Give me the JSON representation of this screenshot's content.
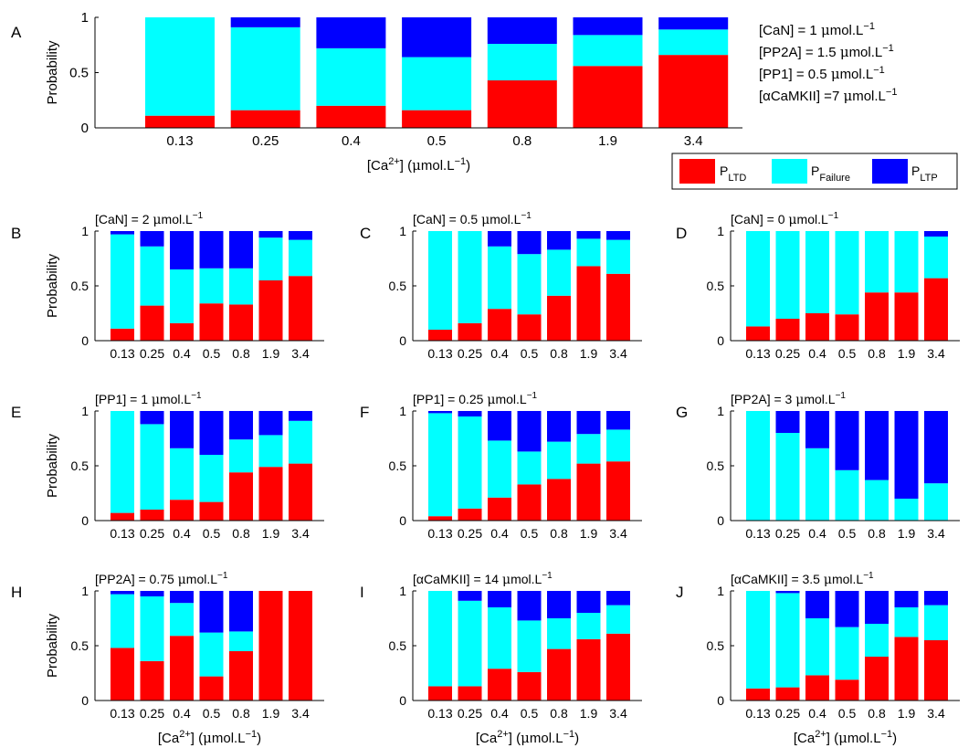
{
  "colors": {
    "ltd": "#ff0000",
    "failure": "#00ffff",
    "ltp": "#0000ff"
  },
  "legend": {
    "ltd_base": "P",
    "ltd_sub": "LTD",
    "failure_base": "P",
    "failure_sub": "Failure",
    "ltp_base": "P",
    "ltp_sub": "LTP"
  },
  "conditions_A": [
    {
      "pre": "[CaN] = 1 ",
      "sup": "−1"
    },
    {
      "pre": "[PP2A] = 1.5 ",
      "sup": "−1"
    },
    {
      "pre": "[PP1] = 0.5 ",
      "sup": "−1"
    },
    {
      "pre": "[αCaMKII] =7 ",
      "sup": "−1"
    }
  ],
  "chart_data": [
    {
      "id": "A",
      "type": "bar",
      "stacked": true,
      "panel_letter": "A",
      "title_pre": "",
      "ylabel": "Probability",
      "xlabel_show": true,
      "yticks": [
        "0",
        "0.5",
        "1"
      ],
      "ylim": [
        0,
        1
      ],
      "categories": [
        "0.13",
        "0.25",
        "0.4",
        "0.5",
        "0.8",
        "1.9",
        "3.4"
      ],
      "series": [
        {
          "name": "P_LTD",
          "values": [
            0.11,
            0.16,
            0.2,
            0.16,
            0.43,
            0.56,
            0.66
          ]
        },
        {
          "name": "P_Failure",
          "values": [
            0.89,
            0.75,
            0.52,
            0.48,
            0.33,
            0.28,
            0.23
          ]
        },
        {
          "name": "P_LTP",
          "values": [
            0.0,
            0.09,
            0.28,
            0.36,
            0.24,
            0.16,
            0.11
          ]
        }
      ]
    },
    {
      "id": "B",
      "type": "bar",
      "stacked": true,
      "panel_letter": "B",
      "title_pre": "[CaN] = 2 ",
      "ylabel": "Probability",
      "xlabel_show": false,
      "yticks": [
        "0",
        "0.5",
        "1"
      ],
      "ylim": [
        0,
        1
      ],
      "categories": [
        "0.13",
        "0.25",
        "0.4",
        "0.5",
        "0.8",
        "1.9",
        "3.4"
      ],
      "series": [
        {
          "name": "P_LTD",
          "values": [
            0.11,
            0.32,
            0.16,
            0.34,
            0.33,
            0.55,
            0.59
          ]
        },
        {
          "name": "P_Failure",
          "values": [
            0.86,
            0.54,
            0.49,
            0.32,
            0.33,
            0.39,
            0.33
          ]
        },
        {
          "name": "P_LTP",
          "values": [
            0.03,
            0.14,
            0.35,
            0.34,
            0.34,
            0.06,
            0.08
          ]
        }
      ]
    },
    {
      "id": "C",
      "type": "bar",
      "stacked": true,
      "panel_letter": "C",
      "title_pre": "[CaN] = 0.5 ",
      "ylabel": "",
      "xlabel_show": false,
      "yticks": [
        "0",
        "0.5",
        "1"
      ],
      "ylim": [
        0,
        1
      ],
      "categories": [
        "0.13",
        "0.25",
        "0.4",
        "0.5",
        "0.8",
        "1.9",
        "3.4"
      ],
      "series": [
        {
          "name": "P_LTD",
          "values": [
            0.1,
            0.16,
            0.29,
            0.24,
            0.41,
            0.68,
            0.61
          ]
        },
        {
          "name": "P_Failure",
          "values": [
            0.9,
            0.84,
            0.57,
            0.55,
            0.42,
            0.25,
            0.31
          ]
        },
        {
          "name": "P_LTP",
          "values": [
            0.0,
            0.0,
            0.14,
            0.21,
            0.17,
            0.07,
            0.08
          ]
        }
      ]
    },
    {
      "id": "D",
      "type": "bar",
      "stacked": true,
      "panel_letter": "D",
      "title_pre": "[CaN] = 0 ",
      "ylabel": "",
      "xlabel_show": false,
      "yticks": [
        "0",
        "0.5",
        "1"
      ],
      "ylim": [
        0,
        1
      ],
      "categories": [
        "0.13",
        "0.25",
        "0.4",
        "0.5",
        "0.8",
        "1.9",
        "3.4"
      ],
      "series": [
        {
          "name": "P_LTD",
          "values": [
            0.13,
            0.2,
            0.25,
            0.24,
            0.44,
            0.44,
            0.57
          ]
        },
        {
          "name": "P_Failure",
          "values": [
            0.87,
            0.8,
            0.75,
            0.76,
            0.56,
            0.56,
            0.38
          ]
        },
        {
          "name": "P_LTP",
          "values": [
            0.0,
            0.0,
            0.0,
            0.0,
            0.0,
            0.0,
            0.05
          ]
        }
      ]
    },
    {
      "id": "E",
      "type": "bar",
      "stacked": true,
      "panel_letter": "E",
      "title_pre": "[PP1] = 1 ",
      "ylabel": "Probability",
      "xlabel_show": false,
      "yticks": [
        "0",
        "0.5",
        "1"
      ],
      "ylim": [
        0,
        1
      ],
      "categories": [
        "0.13",
        "0.25",
        "0.4",
        "0.5",
        "0.8",
        "1.9",
        "3.4"
      ],
      "series": [
        {
          "name": "P_LTD",
          "values": [
            0.07,
            0.1,
            0.19,
            0.17,
            0.44,
            0.49,
            0.52
          ]
        },
        {
          "name": "P_Failure",
          "values": [
            0.93,
            0.78,
            0.47,
            0.43,
            0.3,
            0.29,
            0.39
          ]
        },
        {
          "name": "P_LTP",
          "values": [
            0.0,
            0.12,
            0.34,
            0.4,
            0.26,
            0.22,
            0.09
          ]
        }
      ]
    },
    {
      "id": "F",
      "type": "bar",
      "stacked": true,
      "panel_letter": "F",
      "title_pre": "[PP1] = 0.25 ",
      "ylabel": "",
      "xlabel_show": false,
      "yticks": [
        "0",
        "0.5",
        "1"
      ],
      "ylim": [
        0,
        1
      ],
      "categories": [
        "0.13",
        "0.25",
        "0.4",
        "0.5",
        "0.8",
        "1.9",
        "3.4"
      ],
      "series": [
        {
          "name": "P_LTD",
          "values": [
            0.04,
            0.11,
            0.21,
            0.33,
            0.38,
            0.52,
            0.54
          ]
        },
        {
          "name": "P_Failure",
          "values": [
            0.94,
            0.84,
            0.52,
            0.3,
            0.34,
            0.27,
            0.29
          ]
        },
        {
          "name": "P_LTP",
          "values": [
            0.02,
            0.05,
            0.27,
            0.37,
            0.28,
            0.21,
            0.17
          ]
        }
      ]
    },
    {
      "id": "G",
      "type": "bar",
      "stacked": true,
      "panel_letter": "G",
      "title_pre": "[PP2A] = 3 ",
      "ylabel": "",
      "xlabel_show": false,
      "yticks": [
        "0",
        "0.5",
        "1"
      ],
      "ylim": [
        0,
        1
      ],
      "categories": [
        "0.13",
        "0.25",
        "0.4",
        "0.5",
        "0.8",
        "1.9",
        "3.4"
      ],
      "series": [
        {
          "name": "P_LTD",
          "values": [
            0,
            0,
            0,
            0,
            0,
            0,
            0
          ]
        },
        {
          "name": "P_Failure",
          "values": [
            1.0,
            0.8,
            0.66,
            0.46,
            0.37,
            0.2,
            0.34
          ]
        },
        {
          "name": "P_LTP",
          "values": [
            0.0,
            0.2,
            0.34,
            0.54,
            0.63,
            0.8,
            0.66
          ]
        }
      ]
    },
    {
      "id": "H",
      "type": "bar",
      "stacked": true,
      "panel_letter": "H",
      "title_pre": "[PP2A] = 0.75 ",
      "ylabel": "Probability",
      "xlabel_show": true,
      "yticks": [
        "0",
        "0.5",
        "1"
      ],
      "ylim": [
        0,
        1
      ],
      "categories": [
        "0.13",
        "0.25",
        "0.4",
        "0.5",
        "0.8",
        "1.9",
        "3.4"
      ],
      "series": [
        {
          "name": "P_LTD",
          "values": [
            0.48,
            0.36,
            0.59,
            0.22,
            0.45,
            1.0,
            1.0
          ]
        },
        {
          "name": "P_Failure",
          "values": [
            0.49,
            0.59,
            0.3,
            0.4,
            0.18,
            0.0,
            0.0
          ]
        },
        {
          "name": "P_LTP",
          "values": [
            0.03,
            0.05,
            0.11,
            0.38,
            0.37,
            0.0,
            0.0
          ]
        }
      ]
    },
    {
      "id": "I",
      "type": "bar",
      "stacked": true,
      "panel_letter": "I",
      "title_pre": "[αCaMKII] = 14 ",
      "ylabel": "",
      "xlabel_show": true,
      "yticks": [
        "0",
        "0.5",
        "1"
      ],
      "ylim": [
        0,
        1
      ],
      "categories": [
        "0.13",
        "0.25",
        "0.4",
        "0.5",
        "0.8",
        "1.9",
        "3.4"
      ],
      "series": [
        {
          "name": "P_LTD",
          "values": [
            0.13,
            0.13,
            0.29,
            0.26,
            0.47,
            0.56,
            0.61
          ]
        },
        {
          "name": "P_Failure",
          "values": [
            0.87,
            0.78,
            0.56,
            0.47,
            0.28,
            0.24,
            0.26
          ]
        },
        {
          "name": "P_LTP",
          "values": [
            0.0,
            0.09,
            0.15,
            0.27,
            0.25,
            0.2,
            0.13
          ]
        }
      ]
    },
    {
      "id": "J",
      "type": "bar",
      "stacked": true,
      "panel_letter": "J",
      "title_pre": "[αCaMKII] = 3.5 ",
      "ylabel": "",
      "xlabel_show": true,
      "yticks": [
        "0",
        "0.5",
        "1"
      ],
      "ylim": [
        0,
        1
      ],
      "categories": [
        "0.13",
        "0.25",
        "0.4",
        "0.5",
        "0.8",
        "1.9",
        "3.4"
      ],
      "series": [
        {
          "name": "P_LTD",
          "values": [
            0.11,
            0.12,
            0.23,
            0.19,
            0.4,
            0.58,
            0.55
          ]
        },
        {
          "name": "P_Failure",
          "values": [
            0.89,
            0.86,
            0.52,
            0.48,
            0.3,
            0.27,
            0.32
          ]
        },
        {
          "name": "P_LTP",
          "values": [
            0.0,
            0.02,
            0.25,
            0.33,
            0.3,
            0.15,
            0.13
          ]
        }
      ]
    }
  ]
}
